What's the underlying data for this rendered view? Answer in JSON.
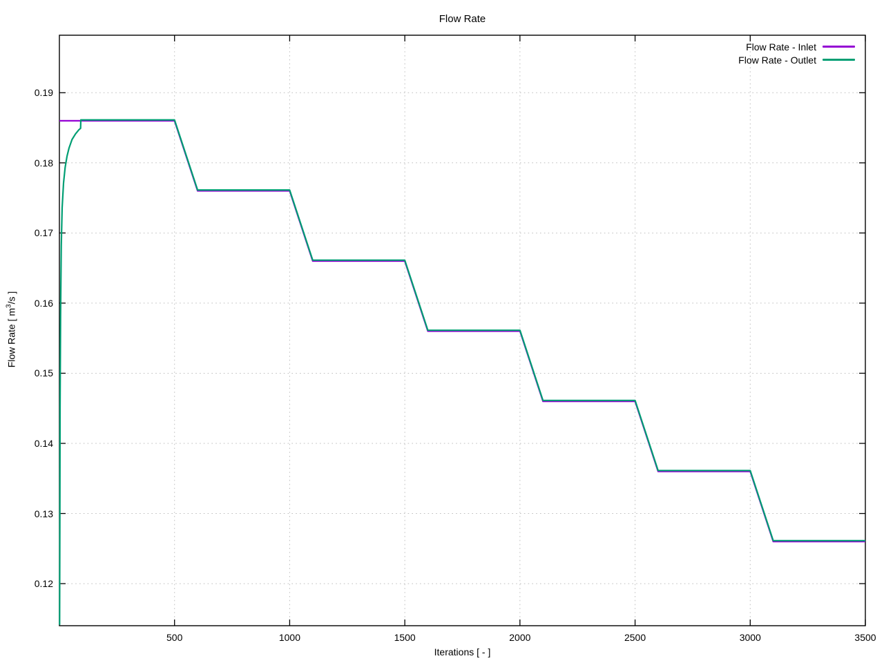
{
  "chart_data": {
    "type": "line",
    "title": "Flow Rate",
    "xlabel": "Iterations [ - ]",
    "ylabel": {
      "prefix": "Flow Rate [ m",
      "sup": "3",
      "suffix": "/s ]"
    },
    "xlim": [
      0,
      3500
    ],
    "ylim": [
      0.114,
      0.1982
    ],
    "grid": true,
    "legend_position": "top-right",
    "xticks": [
      {
        "value": 500,
        "label": "500"
      },
      {
        "value": 1000,
        "label": "1000"
      },
      {
        "value": 1500,
        "label": "1500"
      },
      {
        "value": 2000,
        "label": "2000"
      },
      {
        "value": 2500,
        "label": "2500"
      },
      {
        "value": 3000,
        "label": "3000"
      },
      {
        "value": 3500,
        "label": "3500"
      }
    ],
    "yticks": [
      {
        "value": 0.12,
        "label": "0.12"
      },
      {
        "value": 0.13,
        "label": "0.13"
      },
      {
        "value": 0.14,
        "label": "0.14"
      },
      {
        "value": 0.15,
        "label": "0.15"
      },
      {
        "value": 0.16,
        "label": "0.16"
      },
      {
        "value": 0.17,
        "label": "0.17"
      },
      {
        "value": 0.18,
        "label": "0.18"
      },
      {
        "value": 0.19,
        "label": "0.19"
      }
    ],
    "series": [
      {
        "name": "Flow Rate - Inlet",
        "color": "#9400d3",
        "points": [
          [
            0,
            0.186
          ],
          [
            500,
            0.186
          ],
          [
            600,
            0.176
          ],
          [
            1000,
            0.176
          ],
          [
            1100,
            0.166
          ],
          [
            1500,
            0.166
          ],
          [
            1600,
            0.156
          ],
          [
            2000,
            0.156
          ],
          [
            2100,
            0.146
          ],
          [
            2500,
            0.146
          ],
          [
            2600,
            0.136
          ],
          [
            3000,
            0.136
          ],
          [
            3100,
            0.126
          ],
          [
            3500,
            0.126
          ]
        ]
      },
      {
        "name": "Flow Rate - Outlet",
        "color": "#009e73",
        "points": [
          [
            1,
            0.114
          ],
          [
            2,
            0.13
          ],
          [
            3,
            0.145
          ],
          [
            5,
            0.158
          ],
          [
            8,
            0.168
          ],
          [
            12,
            0.1735
          ],
          [
            18,
            0.177
          ],
          [
            25,
            0.1792
          ],
          [
            33,
            0.1808
          ],
          [
            42,
            0.182
          ],
          [
            55,
            0.1832
          ],
          [
            70,
            0.184
          ],
          [
            85,
            0.1846
          ],
          [
            92,
            0.1848
          ],
          [
            93,
            0.186
          ],
          [
            500,
            0.186
          ],
          [
            600,
            0.176
          ],
          [
            1000,
            0.176
          ],
          [
            1100,
            0.166
          ],
          [
            1500,
            0.166
          ],
          [
            1600,
            0.156
          ],
          [
            2000,
            0.156
          ],
          [
            2100,
            0.146
          ],
          [
            2500,
            0.146
          ],
          [
            2600,
            0.136
          ],
          [
            3000,
            0.136
          ],
          [
            3100,
            0.126
          ],
          [
            3500,
            0.126
          ]
        ]
      }
    ],
    "style": {
      "grid_color": "#bebebe",
      "border_color": "#000000",
      "text_color": "#000000",
      "background": "#ffffff"
    }
  }
}
